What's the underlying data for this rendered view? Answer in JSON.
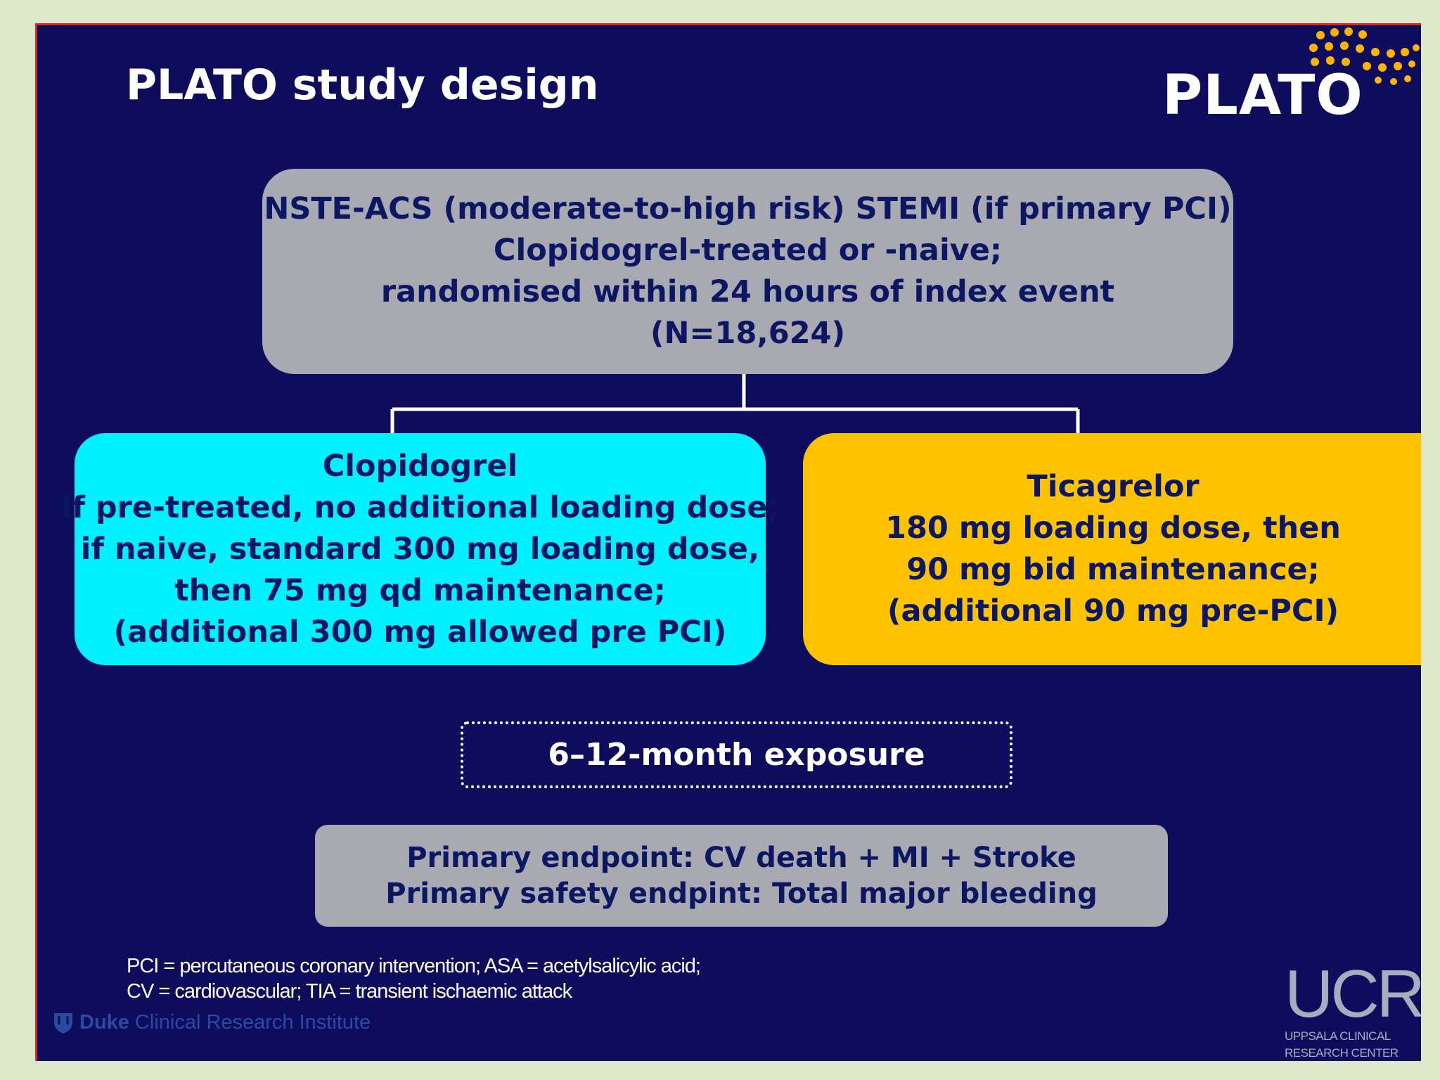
{
  "slide": {
    "title": "PLATO study design",
    "logo_text": "PLATO",
    "colors": {
      "background": "#0e0c5c",
      "box_gray": "#a9a9b1",
      "box_cyan": "#00f0ff",
      "box_yellow": "#fec300",
      "dots": "#ffb400",
      "text_dark": "#0b1763"
    }
  },
  "population_box": {
    "lines": [
      "NSTE-ACS (moderate-to-high risk) STEMI (if primary PCI)",
      "Clopidogrel-treated or -naive;",
      "randomised within 24 hours of index event",
      "(N=18,624)"
    ]
  },
  "clopidogrel_box": {
    "lines": [
      "Clopidogrel",
      "If pre-treated, no additional loading dose;",
      "if naive, standard 300 mg loading dose,",
      "then 75 mg qd maintenance;",
      "(additional 300 mg allowed pre PCI)"
    ]
  },
  "ticagrelor_box": {
    "lines": [
      "Ticagrelor",
      "180 mg loading dose, then",
      "90 mg bid maintenance;",
      "(additional 90 mg pre-PCI)"
    ]
  },
  "exposure_box": {
    "text": "6–12-month exposure"
  },
  "endpoint_box": {
    "lines": [
      "Primary endpoint: CV death + MI + Stroke",
      "Primary safety endpint: Total major bleeding"
    ]
  },
  "footnote": {
    "lines": [
      "PCI = percutaneous coronary intervention; ASA = acetylsalicylic acid;",
      "CV = cardiovascular; TIA = transient ischaemic attack"
    ]
  },
  "duke_logo": {
    "name": "Duke",
    "rest": "Clinical Research Institute"
  },
  "ucr_logo": {
    "mark": "UCR",
    "sub_lines": [
      "UPPSALA CLINICAL",
      "RESEARCH CENTER"
    ]
  }
}
